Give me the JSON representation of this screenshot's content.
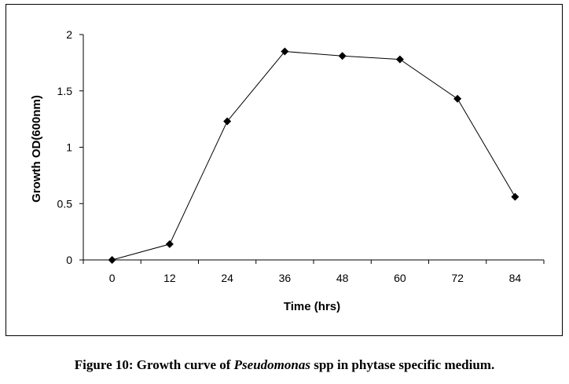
{
  "chart_data": {
    "type": "line",
    "title": "",
    "xlabel": "Time (hrs)",
    "ylabel": "Growth OD(600nm)",
    "x": [
      0,
      12,
      24,
      36,
      48,
      60,
      72,
      84
    ],
    "series": [
      {
        "name": "Pseudomonas spp",
        "values": [
          0,
          0.14,
          1.23,
          1.85,
          1.81,
          1.78,
          1.43,
          0.56
        ]
      }
    ],
    "ylim": [
      0,
      2
    ],
    "yticks": [
      "0",
      "0.5",
      "1",
      "1.5",
      "2"
    ],
    "xticks": [
      "0",
      "12",
      "24",
      "36",
      "48",
      "60",
      "72",
      "84"
    ],
    "marker": "diamond",
    "grid": false,
    "colors": {
      "line": "#000000",
      "marker": "#000000"
    }
  },
  "caption": {
    "prefix": "Figure 10: Growth curve of ",
    "italic": "Pseudomonas",
    "suffix": " spp in phytase specific medium."
  }
}
